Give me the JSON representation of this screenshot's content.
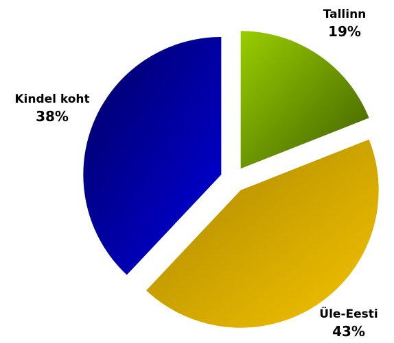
{
  "chart_data": {
    "type": "pie",
    "title": "",
    "slices": [
      {
        "label": "Tallinn",
        "value": 19,
        "value_label": "19%",
        "color": "#9acd00",
        "color_dark": "#3f5f00"
      },
      {
        "label": "Üle-Eesti",
        "value": 43,
        "value_label": "43%",
        "color": "#f5c400",
        "color_dark": "#a88400"
      },
      {
        "label": "Kindel koht",
        "value": 38,
        "value_label": "38%",
        "color": "#0000e0",
        "color_dark": "#000060"
      }
    ],
    "exploded": true,
    "legend": "none"
  }
}
